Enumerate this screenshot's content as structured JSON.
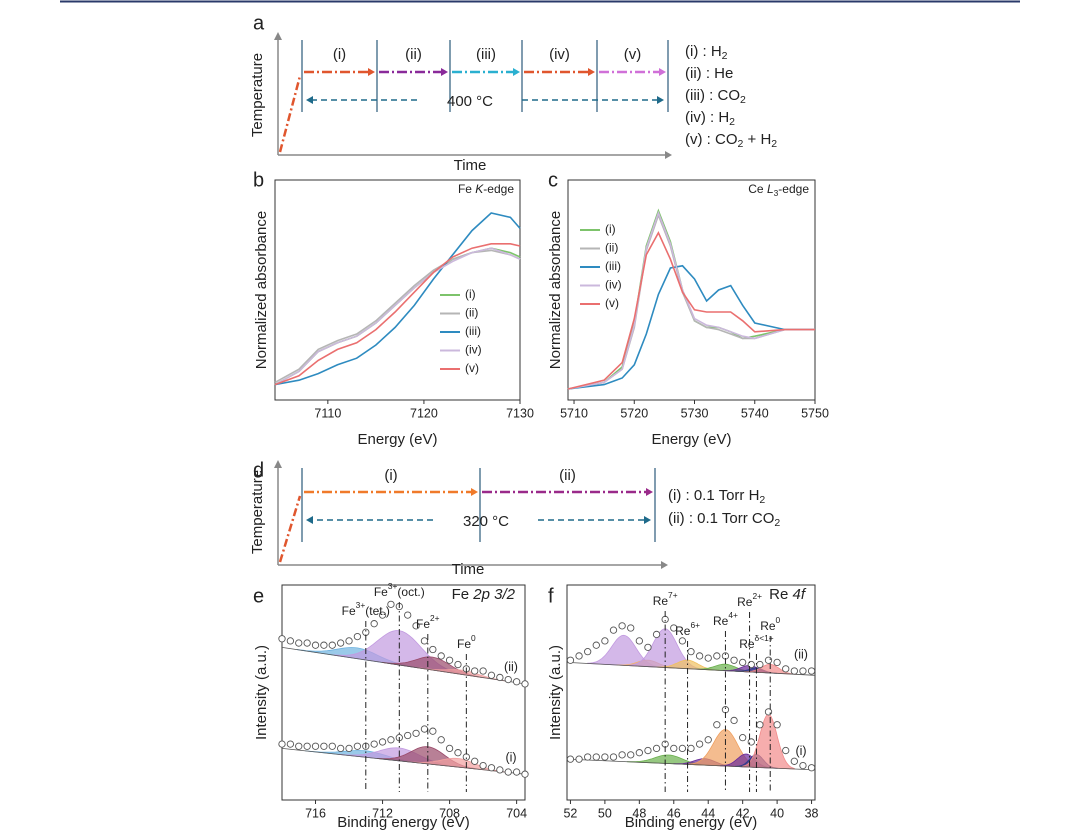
{
  "schematics": [
    {
      "panel": "a",
      "ylabel": "Temperature",
      "xlabel": "Time",
      "temperature": "400 °C",
      "ramp_color": "#e0562e",
      "dash_color": "#1e6a8a",
      "stages": [
        {
          "label": "(i)",
          "color": "#e0562e"
        },
        {
          "label": "(ii)",
          "color": "#8a2a9a"
        },
        {
          "label": "(iii)",
          "color": "#2ab0d0"
        },
        {
          "label": "(iv)",
          "color": "#e0562e"
        },
        {
          "label": "(v)",
          "color": "#d070d8"
        }
      ],
      "gas_legend": [
        [
          {
            "t": "(i) : H"
          },
          {
            "sub": "2"
          }
        ],
        [
          {
            "t": "(ii) : He"
          }
        ],
        [
          {
            "t": "(iii) : CO"
          },
          {
            "sub": "2"
          }
        ],
        [
          {
            "t": "(iv) : H"
          },
          {
            "sub": "2"
          }
        ],
        [
          {
            "t": "(v) : CO"
          },
          {
            "sub": "2"
          },
          {
            "t": " + H"
          },
          {
            "sub": "2"
          }
        ]
      ]
    },
    {
      "panel": "d",
      "ylabel": "Temperature",
      "xlabel": "Time",
      "temperature": "320 °C",
      "ramp_color": "#e0562e",
      "dash_color": "#1e6a8a",
      "stages": [
        {
          "label": "(i)",
          "color": "#f07a2a"
        },
        {
          "label": "(ii)",
          "color": "#9a2a8a"
        }
      ],
      "gas_legend": [
        [
          {
            "t": "(i) : 0.1 Torr H"
          },
          {
            "sub": "2"
          }
        ],
        [
          {
            "t": "(ii) : 0.1 Torr CO"
          },
          {
            "sub": "2"
          }
        ]
      ]
    }
  ],
  "chart_data": [
    {
      "type": "line",
      "panel": "b",
      "annotation": [
        {
          "t": "Fe "
        },
        {
          "i": "K"
        },
        {
          "t": "-edge"
        }
      ],
      "xlabel": "Energy (eV)",
      "ylabel": "Normalized absorbance",
      "xlim": [
        7104.5,
        7130
      ],
      "xticks": [
        7110,
        7120,
        7130
      ],
      "ylim": [
        0,
        1
      ],
      "legend": "lower right",
      "x": [
        7104.5,
        7107,
        7109,
        7111,
        7113,
        7115,
        7117,
        7119,
        7121,
        7123,
        7125,
        7127,
        7129,
        7130
      ],
      "series": [
        {
          "name": "(i)",
          "color": "#7dc36b",
          "values": [
            0.07,
            0.13,
            0.22,
            0.26,
            0.29,
            0.35,
            0.43,
            0.51,
            0.58,
            0.64,
            0.67,
            0.69,
            0.67,
            0.65
          ]
        },
        {
          "name": "(ii)",
          "color": "#b5b5b5",
          "values": [
            0.08,
            0.14,
            0.23,
            0.27,
            0.3,
            0.36,
            0.44,
            0.52,
            0.59,
            0.64,
            0.67,
            0.68,
            0.66,
            0.64
          ]
        },
        {
          "name": "(iii)",
          "color": "#2e8bc0",
          "values": [
            0.07,
            0.09,
            0.12,
            0.16,
            0.19,
            0.25,
            0.33,
            0.43,
            0.55,
            0.66,
            0.77,
            0.85,
            0.83,
            0.78
          ]
        },
        {
          "name": "(iv)",
          "color": "#cbb8dc",
          "values": [
            0.07,
            0.13,
            0.22,
            0.26,
            0.29,
            0.35,
            0.43,
            0.51,
            0.58,
            0.63,
            0.67,
            0.69,
            0.66,
            0.64
          ]
        },
        {
          "name": "(v)",
          "color": "#ea6f6f",
          "values": [
            0.07,
            0.11,
            0.18,
            0.23,
            0.26,
            0.32,
            0.4,
            0.49,
            0.58,
            0.65,
            0.69,
            0.71,
            0.71,
            0.7
          ]
        }
      ]
    },
    {
      "type": "line",
      "panel": "c",
      "annotation": [
        {
          "t": "Ce "
        },
        {
          "i": "L"
        },
        {
          "sub": "3"
        },
        {
          "t": "-edge"
        }
      ],
      "xlabel": "Energy (eV)",
      "ylabel": "Normalized absorbance",
      "xlim": [
        5709,
        5750
      ],
      "xticks": [
        5710,
        5720,
        5730,
        5740,
        5750
      ],
      "ylim": [
        0,
        1
      ],
      "legend": "upper left",
      "x": [
        5709,
        5715,
        5718,
        5720,
        5722,
        5724,
        5726,
        5728,
        5730,
        5732,
        5734,
        5736,
        5738,
        5740,
        5745,
        5750
      ],
      "series": [
        {
          "name": "(i)",
          "color": "#7dc36b",
          "values": [
            0.05,
            0.08,
            0.15,
            0.35,
            0.7,
            0.86,
            0.72,
            0.5,
            0.36,
            0.33,
            0.33,
            0.31,
            0.28,
            0.29,
            0.32,
            0.32
          ]
        },
        {
          "name": "(ii)",
          "color": "#b5b5b5",
          "values": [
            0.05,
            0.08,
            0.14,
            0.33,
            0.68,
            0.84,
            0.7,
            0.49,
            0.36,
            0.33,
            0.32,
            0.3,
            0.28,
            0.28,
            0.32,
            0.32
          ]
        },
        {
          "name": "(iii)",
          "color": "#2e8bc0",
          "values": [
            0.05,
            0.07,
            0.1,
            0.16,
            0.3,
            0.48,
            0.6,
            0.61,
            0.55,
            0.45,
            0.5,
            0.52,
            0.43,
            0.35,
            0.32,
            0.32
          ]
        },
        {
          "name": "(iv)",
          "color": "#cbb8dc",
          "values": [
            0.05,
            0.08,
            0.14,
            0.34,
            0.69,
            0.85,
            0.71,
            0.5,
            0.37,
            0.34,
            0.33,
            0.31,
            0.29,
            0.28,
            0.32,
            0.32
          ]
        },
        {
          "name": "(v)",
          "color": "#ea6f6f",
          "values": [
            0.05,
            0.09,
            0.17,
            0.37,
            0.66,
            0.76,
            0.64,
            0.49,
            0.41,
            0.4,
            0.4,
            0.4,
            0.36,
            0.31,
            0.32,
            0.32
          ]
        }
      ]
    },
    {
      "type": "scatter",
      "panel": "e",
      "annotation": [
        {
          "t": "Fe "
        },
        {
          "i": "2p 3/2"
        }
      ],
      "xlabel": "Binding energy (eV)",
      "ylabel": "Intensity (a.u.)",
      "xlim": [
        718,
        703.5
      ],
      "xticks": [
        716,
        712,
        708,
        704
      ],
      "ylim": [
        0,
        1
      ],
      "refs": [
        {
          "x": 713,
          "label": [
            {
              "t": "Fe"
            },
            {
              "sup": "3+"
            },
            {
              "t": "(tet.)"
            }
          ]
        },
        {
          "x": 711,
          "label": [
            {
              "t": "Fe"
            },
            {
              "sup": "3+"
            },
            {
              "t": "(oct.)"
            }
          ]
        },
        {
          "x": 709.3,
          "label": [
            {
              "t": "Fe"
            },
            {
              "sup": "2+"
            }
          ]
        },
        {
          "x": 707,
          "label": [
            {
              "t": "Fe"
            },
            {
              "sup": "0"
            }
          ]
        }
      ],
      "x": [
        718,
        717.5,
        717,
        716.5,
        716,
        715.5,
        715,
        714.5,
        714,
        713.5,
        713,
        712.5,
        712,
        711.5,
        711,
        710.5,
        710,
        709.5,
        709,
        708.5,
        708,
        707.5,
        707,
        706.5,
        706,
        705.5,
        705,
        704.5,
        704,
        703.5
      ],
      "series": [
        {
          "name": "(ii)",
          "values": [
            0.75,
            0.74,
            0.73,
            0.73,
            0.72,
            0.72,
            0.72,
            0.73,
            0.74,
            0.76,
            0.78,
            0.82,
            0.86,
            0.91,
            0.9,
            0.86,
            0.81,
            0.74,
            0.7,
            0.67,
            0.65,
            0.63,
            0.61,
            0.6,
            0.6,
            0.58,
            0.57,
            0.56,
            0.55,
            0.54
          ],
          "background": [
            0.71,
            0.54
          ],
          "components": [
            {
              "color": "#6fb3e0",
              "center": 713.5,
              "height": 0.05,
              "width": 1.2
            },
            {
              "color": "#c29ae0",
              "center": 711,
              "height": 0.16,
              "width": 1.3
            },
            {
              "color": "#9a4a6a",
              "center": 709,
              "height": 0.06,
              "width": 1.0
            },
            {
              "color": "#f2a0a0",
              "center": 707.2,
              "height": 0.02,
              "width": 0.9
            }
          ]
        },
        {
          "name": "(i)",
          "values": [
            0.26,
            0.26,
            0.25,
            0.25,
            0.25,
            0.25,
            0.25,
            0.24,
            0.24,
            0.25,
            0.25,
            0.26,
            0.27,
            0.28,
            0.29,
            0.3,
            0.31,
            0.33,
            0.32,
            0.28,
            0.24,
            0.22,
            0.2,
            0.18,
            0.16,
            0.15,
            0.14,
            0.13,
            0.13,
            0.12
          ],
          "background": [
            0.24,
            0.12
          ],
          "components": [
            {
              "color": "#6fb3e0",
              "center": 713,
              "height": 0.03,
              "width": 1.2
            },
            {
              "color": "#c29ae0",
              "center": 711,
              "height": 0.06,
              "width": 1.2
            },
            {
              "color": "#9a4a6a",
              "center": 709.3,
              "height": 0.08,
              "width": 1.0
            },
            {
              "color": "#f2a0a0",
              "center": 707.5,
              "height": 0.04,
              "width": 1.0
            }
          ]
        }
      ]
    },
    {
      "type": "scatter",
      "panel": "f",
      "annotation": [
        {
          "t": "Re "
        },
        {
          "i": "4f"
        }
      ],
      "xlabel": "Binding energy (eV)",
      "ylabel": "Intensity (a.u.)",
      "xlim": [
        52.2,
        37.8
      ],
      "xticks": [
        52,
        50,
        48,
        46,
        44,
        42,
        40,
        38
      ],
      "ylim": [
        0,
        1
      ],
      "refs": [
        {
          "x": 46.5,
          "label": [
            {
              "t": "Re"
            },
            {
              "sup": "7+"
            }
          ]
        },
        {
          "x": 45.2,
          "label": [
            {
              "t": "Re"
            },
            {
              "sup": "6+"
            }
          ]
        },
        {
          "x": 43,
          "label": [
            {
              "t": "Re"
            },
            {
              "sup": "4+"
            }
          ]
        },
        {
          "x": 41.6,
          "label": [
            {
              "t": "Re"
            },
            {
              "sup": "2+"
            }
          ]
        },
        {
          "x": 41.2,
          "label": [
            {
              "t": "Re"
            },
            {
              "sup": "δ<1+"
            }
          ]
        },
        {
          "x": 40.4,
          "label": [
            {
              "t": "Re"
            },
            {
              "sup": "0"
            }
          ]
        }
      ],
      "x": [
        52,
        51.5,
        51,
        50.5,
        50,
        49.5,
        49,
        48.5,
        48,
        47.5,
        47,
        46.5,
        46,
        45.5,
        45,
        44.5,
        44,
        43.5,
        43,
        42.5,
        42,
        41.5,
        41,
        40.5,
        40,
        39.5,
        39,
        38.5,
        38
      ],
      "series": [
        {
          "name": "(ii)",
          "values": [
            0.65,
            0.67,
            0.69,
            0.72,
            0.74,
            0.79,
            0.81,
            0.8,
            0.74,
            0.71,
            0.77,
            0.84,
            0.8,
            0.74,
            0.69,
            0.67,
            0.66,
            0.67,
            0.67,
            0.65,
            0.64,
            0.63,
            0.63,
            0.65,
            0.64,
            0.61,
            0.6,
            0.6,
            0.6
          ],
          "background": [
            0.64,
            0.58
          ],
          "components": [
            {
              "color": "#c29ae0",
              "center": 48.9,
              "height": 0.14,
              "width": 0.7
            },
            {
              "color": "#f0b070",
              "center": 47.5,
              "height": 0.03,
              "width": 0.6
            },
            {
              "color": "#c29ae0",
              "center": 46.5,
              "height": 0.18,
              "width": 0.7
            },
            {
              "color": "#f0c060",
              "center": 45.2,
              "height": 0.04,
              "width": 0.6
            },
            {
              "color": "#6ab04c",
              "center": 43,
              "height": 0.03,
              "width": 0.6
            },
            {
              "color": "#6a2a9a",
              "center": 41.6,
              "height": 0.03,
              "width": 0.5
            },
            {
              "color": "#2a3a8a",
              "center": 41.2,
              "height": 0.02,
              "width": 0.4
            },
            {
              "color": "#f28a8a",
              "center": 40.4,
              "height": 0.04,
              "width": 0.5
            }
          ]
        },
        {
          "name": "(i)",
          "values": [
            0.19,
            0.19,
            0.2,
            0.2,
            0.2,
            0.2,
            0.21,
            0.21,
            0.22,
            0.23,
            0.24,
            0.26,
            0.24,
            0.24,
            0.24,
            0.26,
            0.28,
            0.35,
            0.42,
            0.37,
            0.29,
            0.27,
            0.35,
            0.41,
            0.35,
            0.23,
            0.18,
            0.16,
            0.15
          ],
          "background": [
            0.19,
            0.14
          ],
          "components": [
            {
              "color": "#6ab04c",
              "center": 46.3,
              "height": 0.04,
              "width": 0.8
            },
            {
              "color": "#6a2a9a",
              "center": 44.2,
              "height": 0.03,
              "width": 0.6
            },
            {
              "color": "#f0a060",
              "center": 43,
              "height": 0.17,
              "width": 0.7
            },
            {
              "color": "#6a2a9a",
              "center": 41.8,
              "height": 0.06,
              "width": 0.5
            },
            {
              "color": "#2a3a8a",
              "center": 41.2,
              "height": 0.06,
              "width": 0.4
            },
            {
              "color": "#f28a8a",
              "center": 40.5,
              "height": 0.25,
              "width": 0.5
            }
          ]
        }
      ]
    }
  ]
}
